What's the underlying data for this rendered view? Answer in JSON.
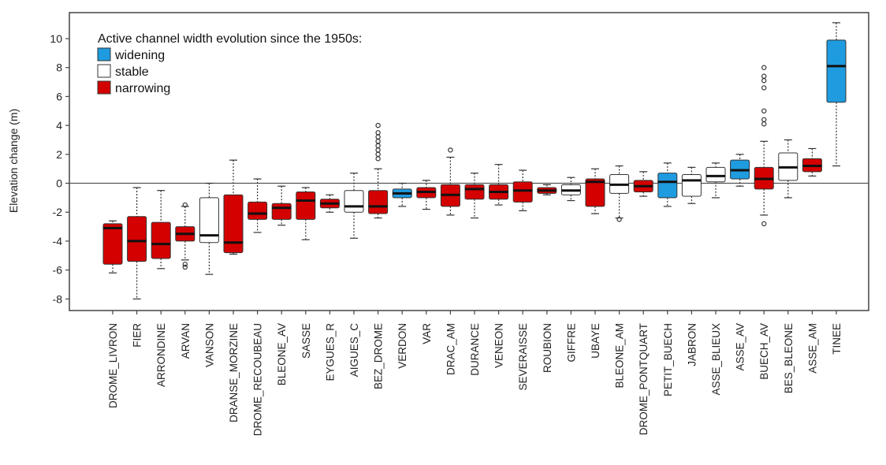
{
  "chart_data": {
    "type": "box",
    "ylabel": "Elevation change (m)",
    "ylim": [
      -8.8,
      11.8
    ],
    "yticks": [
      -8,
      -6,
      -4,
      -2,
      0,
      2,
      4,
      6,
      8,
      10
    ],
    "reference_line": 0,
    "grid": false,
    "legend": {
      "title": "Active channel width evolution since the 1950s:",
      "placement": "top-left",
      "items": [
        {
          "key": "widening",
          "label": "widening"
        },
        {
          "key": "stable",
          "label": "stable"
        },
        {
          "key": "narrowing",
          "label": "narrowing"
        }
      ]
    },
    "colors": {
      "widening": "#1f9be0",
      "stable": "#ffffff",
      "narrowing": "#d40000"
    },
    "boxes": [
      {
        "name": "DROME_LIVRON",
        "group": "narrowing",
        "whislo": -6.2,
        "q1": -5.6,
        "med": -3.1,
        "q3": -2.8,
        "whishi": -2.6,
        "fliers": []
      },
      {
        "name": "FIER",
        "group": "narrowing",
        "whislo": -8.0,
        "q1": -5.4,
        "med": -4.0,
        "q3": -2.3,
        "whishi": -0.3,
        "fliers": []
      },
      {
        "name": "ARRONDINE",
        "group": "narrowing",
        "whislo": -5.9,
        "q1": -5.2,
        "med": -4.2,
        "q3": -2.7,
        "whishi": -0.5,
        "fliers": []
      },
      {
        "name": "ARVAN",
        "group": "narrowing",
        "whislo": -5.3,
        "q1": -4.0,
        "med": -3.5,
        "q3": -3.0,
        "whishi": -1.6,
        "fliers": [
          -1.5,
          -5.6,
          -5.8
        ]
      },
      {
        "name": "VANSON",
        "group": "stable",
        "whislo": -6.3,
        "q1": -4.1,
        "med": -3.6,
        "q3": -1.0,
        "whishi": 0.0,
        "fliers": []
      },
      {
        "name": "DRANSE_MORZINE",
        "group": "narrowing",
        "whislo": -4.9,
        "q1": -4.8,
        "med": -4.1,
        "q3": -0.8,
        "whishi": 1.6,
        "fliers": []
      },
      {
        "name": "DROME_RECOUBEAU",
        "group": "narrowing",
        "whislo": -3.4,
        "q1": -2.5,
        "med": -2.1,
        "q3": -1.3,
        "whishi": 0.3,
        "fliers": []
      },
      {
        "name": "BLEONE_AV",
        "group": "narrowing",
        "whislo": -2.9,
        "q1": -2.5,
        "med": -1.7,
        "q3": -1.4,
        "whishi": -0.2,
        "fliers": []
      },
      {
        "name": "SASSE",
        "group": "narrowing",
        "whislo": -3.9,
        "q1": -2.5,
        "med": -1.2,
        "q3": -0.6,
        "whishi": -0.3,
        "fliers": []
      },
      {
        "name": "EYGUES_R",
        "group": "narrowing",
        "whislo": -2.0,
        "q1": -1.7,
        "med": -1.4,
        "q3": -1.1,
        "whishi": -0.8,
        "fliers": []
      },
      {
        "name": "AIGUES_C",
        "group": "stable",
        "whislo": -3.8,
        "q1": -2.0,
        "med": -1.6,
        "q3": -0.5,
        "whishi": 0.7,
        "fliers": []
      },
      {
        "name": "BEZ_DROME",
        "group": "narrowing",
        "whislo": -2.4,
        "q1": -2.1,
        "med": -1.6,
        "q3": -0.5,
        "whishi": 1.0,
        "fliers": [
          1.7,
          2.0,
          2.3,
          2.6,
          2.9,
          3.2,
          3.5,
          4.0
        ]
      },
      {
        "name": "VERDON",
        "group": "widening",
        "whislo": -1.6,
        "q1": -1.0,
        "med": -0.7,
        "q3": -0.4,
        "whishi": 0.0,
        "fliers": []
      },
      {
        "name": "VAR",
        "group": "narrowing",
        "whislo": -1.8,
        "q1": -1.0,
        "med": -0.6,
        "q3": -0.3,
        "whishi": 0.2,
        "fliers": []
      },
      {
        "name": "DRAC_AM",
        "group": "narrowing",
        "whislo": -2.2,
        "q1": -1.6,
        "med": -0.8,
        "q3": -0.1,
        "whishi": 1.8,
        "fliers": [
          2.3
        ]
      },
      {
        "name": "DURANCE",
        "group": "narrowing",
        "whislo": -2.4,
        "q1": -1.1,
        "med": -0.4,
        "q3": -0.1,
        "whishi": 0.7,
        "fliers": []
      },
      {
        "name": "VENEON",
        "group": "narrowing",
        "whislo": -1.5,
        "q1": -1.1,
        "med": -0.6,
        "q3": -0.1,
        "whishi": 1.3,
        "fliers": []
      },
      {
        "name": "SEVERAISSE",
        "group": "narrowing",
        "whislo": -1.9,
        "q1": -1.3,
        "med": -0.5,
        "q3": 0.1,
        "whishi": 0.9,
        "fliers": []
      },
      {
        "name": "ROUBION",
        "group": "narrowing",
        "whislo": -0.8,
        "q1": -0.7,
        "med": -0.5,
        "q3": -0.3,
        "whishi": -0.1,
        "fliers": []
      },
      {
        "name": "GIFFRE",
        "group": "stable",
        "whislo": -1.2,
        "q1": -0.8,
        "med": -0.5,
        "q3": -0.1,
        "whishi": 0.4,
        "fliers": []
      },
      {
        "name": "UBAYE",
        "group": "narrowing",
        "whislo": -2.1,
        "q1": -1.6,
        "med": 0.1,
        "q3": 0.3,
        "whishi": 1.0,
        "fliers": []
      },
      {
        "name": "BLEONE_AM",
        "group": "stable",
        "whislo": -2.4,
        "q1": -0.7,
        "med": -0.1,
        "q3": 0.6,
        "whishi": 1.2,
        "fliers": [
          -2.5
        ]
      },
      {
        "name": "DROME_PONTQUART",
        "group": "narrowing",
        "whislo": -0.9,
        "q1": -0.6,
        "med": -0.2,
        "q3": 0.2,
        "whishi": 0.8,
        "fliers": []
      },
      {
        "name": "PETIT_BUECH",
        "group": "widening",
        "whislo": -1.6,
        "q1": -1.0,
        "med": 0.1,
        "q3": 0.7,
        "whishi": 1.4,
        "fliers": []
      },
      {
        "name": "JABRON",
        "group": "stable",
        "whislo": -1.4,
        "q1": -0.9,
        "med": 0.2,
        "q3": 0.6,
        "whishi": 1.1,
        "fliers": []
      },
      {
        "name": "ASSE_BLIEUX",
        "group": "stable",
        "whislo": -1.0,
        "q1": 0.1,
        "med": 0.5,
        "q3": 1.1,
        "whishi": 1.4,
        "fliers": []
      },
      {
        "name": "ASSE_AV",
        "group": "widening",
        "whislo": -0.2,
        "q1": 0.3,
        "med": 0.9,
        "q3": 1.6,
        "whishi": 2.0,
        "fliers": []
      },
      {
        "name": "BUECH_AV",
        "group": "narrowing",
        "whislo": -2.2,
        "q1": -0.4,
        "med": 0.3,
        "q3": 1.1,
        "whishi": 2.9,
        "fliers": [
          -2.8,
          4.1,
          4.4,
          5.0,
          6.6,
          7.1,
          7.4,
          8.0
        ]
      },
      {
        "name": "BES_BLEONE",
        "group": "stable",
        "whislo": -1.0,
        "q1": 0.2,
        "med": 1.1,
        "q3": 2.1,
        "whishi": 3.0,
        "fliers": []
      },
      {
        "name": "ASSE_AM",
        "group": "narrowing",
        "whislo": 0.5,
        "q1": 0.8,
        "med": 1.2,
        "q3": 1.7,
        "whishi": 2.4,
        "fliers": []
      },
      {
        "name": "TINEE",
        "group": "widening",
        "whislo": 1.2,
        "q1": 5.6,
        "med": 8.1,
        "q3": 9.9,
        "whishi": 11.1,
        "fliers": []
      }
    ]
  }
}
